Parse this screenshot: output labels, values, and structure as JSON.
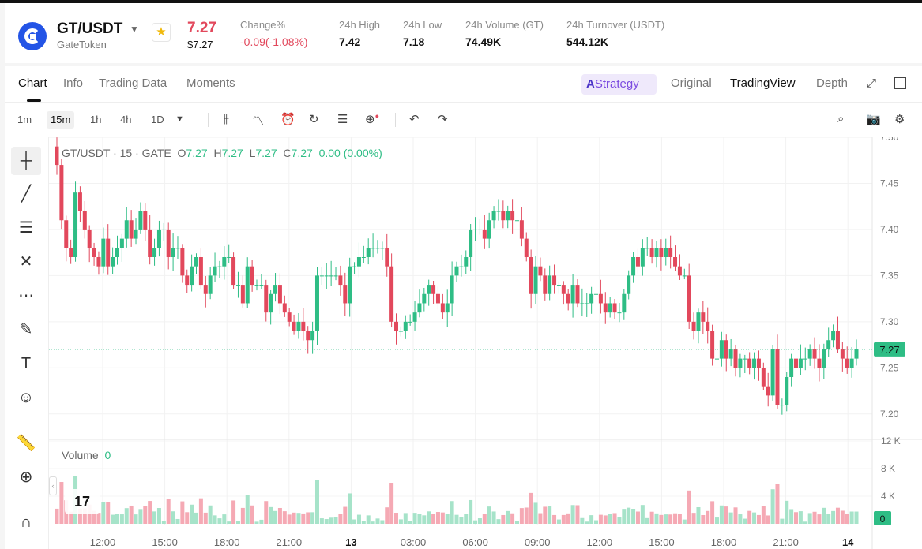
{
  "ticker": {
    "pair": "GT/USDT",
    "name": "GateToken",
    "price": "7.27",
    "price_usd": "$7.27",
    "stats": [
      {
        "label": "Change%",
        "value": "-0.09(-1.08%)",
        "negative": true
      },
      {
        "label": "24h High",
        "value": "7.42"
      },
      {
        "label": "24h Low",
        "value": "7.18"
      },
      {
        "label": "24h Volume (GT)",
        "value": "74.49K"
      },
      {
        "label": "24h Turnover (USDT)",
        "value": "544.12K"
      }
    ]
  },
  "tabs": [
    {
      "label": "Chart",
      "active": true
    },
    {
      "label": "Info"
    },
    {
      "label": "Trading Data"
    },
    {
      "label": "Moments"
    }
  ],
  "strategy_label": "Strategy",
  "strategy_prefix": "A",
  "views": [
    {
      "label": "Original"
    },
    {
      "label": "TradingView",
      "active": true
    },
    {
      "label": "Depth"
    }
  ],
  "timeframes": [
    {
      "label": "1m"
    },
    {
      "label": "15m",
      "active": true
    },
    {
      "label": "1h"
    },
    {
      "label": "4h"
    },
    {
      "label": "1D"
    }
  ],
  "legend": {
    "symbol": "GT/USDT · 15 · GATE",
    "o_label": "O",
    "o": "7.27",
    "h_label": "H",
    "h": "7.27",
    "l_label": "L",
    "l": "7.27",
    "c_label": "C",
    "c": "7.27",
    "change": "0.00 (0.00%)"
  },
  "volume_legend": {
    "label": "Volume",
    "value": "0"
  },
  "tv_logo": "17",
  "colors": {
    "up": "#2ebd85",
    "down": "#e2485c",
    "up_vol": "#a6e3c9",
    "down_vol": "#f5a9b4",
    "strategy": "#7b4be0"
  },
  "chart_data": {
    "type": "candlestick",
    "price_axis": {
      "ticks": [
        "7.50",
        "7.45",
        "7.40",
        "7.35",
        "7.30",
        "7.25",
        "7.20"
      ],
      "range": [
        7.175,
        7.5
      ]
    },
    "last_price": "7.27",
    "volume_axis": {
      "ticks": [
        "12 K",
        "8 K",
        "4 K"
      ],
      "last_label": "0",
      "max": 12000
    },
    "time_labels": [
      "12:00",
      "15:00",
      "18:00",
      "21:00",
      "13",
      "03:00",
      "06:00",
      "09:00",
      "12:00",
      "15:00",
      "18:00",
      "21:00",
      "14"
    ],
    "closes": [
      7.47,
      7.41,
      7.38,
      7.37,
      7.44,
      7.42,
      7.4,
      7.38,
      7.37,
      7.36,
      7.39,
      7.36,
      7.37,
      7.38,
      7.39,
      7.41,
      7.39,
      7.4,
      7.42,
      7.4,
      7.37,
      7.38,
      7.4,
      7.4,
      7.37,
      7.38,
      7.38,
      7.35,
      7.34,
      7.36,
      7.37,
      7.34,
      7.33,
      7.35,
      7.36,
      7.36,
      7.37,
      7.37,
      7.34,
      7.34,
      7.32,
      7.36,
      7.34,
      7.34,
      7.34,
      7.31,
      7.33,
      7.34,
      7.32,
      7.31,
      7.3,
      7.29,
      7.3,
      7.29,
      7.28,
      7.29,
      7.35,
      7.35,
      7.35,
      7.35,
      7.35,
      7.34,
      7.32,
      7.36,
      7.36,
      7.37,
      7.37,
      7.38,
      7.38,
      7.38,
      7.38,
      7.36,
      7.3,
      7.29,
      7.29,
      7.3,
      7.3,
      7.31,
      7.32,
      7.33,
      7.34,
      7.33,
      7.32,
      7.31,
      7.32,
      7.35,
      7.36,
      7.36,
      7.37,
      7.4,
      7.4,
      7.4,
      7.39,
      7.41,
      7.42,
      7.42,
      7.41,
      7.42,
      7.41,
      7.41,
      7.39,
      7.37,
      7.33,
      7.36,
      7.35,
      7.33,
      7.35,
      7.34,
      7.34,
      7.33,
      7.32,
      7.34,
      7.32,
      7.32,
      7.32,
      7.33,
      7.33,
      7.32,
      7.31,
      7.32,
      7.31,
      7.31,
      7.33,
      7.35,
      7.37,
      7.36,
      7.38,
      7.38,
      7.37,
      7.38,
      7.37,
      7.38,
      7.37,
      7.36,
      7.35,
      7.35,
      7.3,
      7.29,
      7.31,
      7.3,
      7.29,
      7.26,
      7.26,
      7.28,
      7.26,
      7.27,
      7.25,
      7.26,
      7.26,
      7.25,
      7.26,
      7.25,
      7.23,
      7.22,
      7.27,
      7.21,
      7.21,
      7.24,
      7.26,
      7.25,
      7.26,
      7.26,
      7.27,
      7.26,
      7.25,
      7.27,
      7.28,
      7.29,
      7.27,
      7.26,
      7.25,
      7.26,
      7.27
    ]
  }
}
